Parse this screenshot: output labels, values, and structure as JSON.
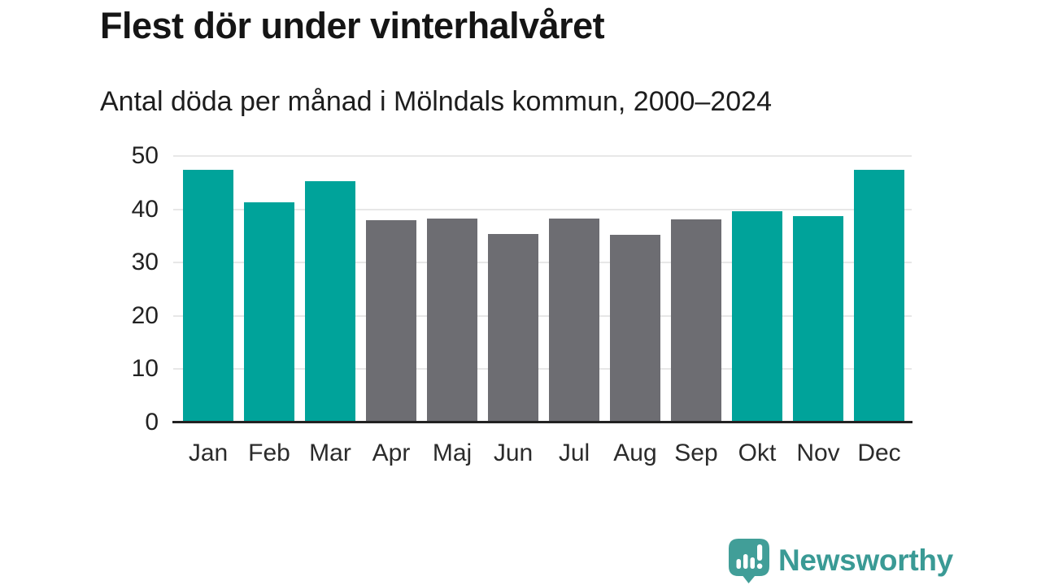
{
  "header": {
    "title": "Flest dör under vinterhalvåret",
    "subtitle": "Antal döda per månad i Mölndals kommun, 2000–2024"
  },
  "chart_data": {
    "type": "bar",
    "title": "Flest dör under vinterhalvåret",
    "subtitle": "Antal döda per månad i Mölndals kommun, 2000–2024",
    "categories": [
      "Jan",
      "Feb",
      "Mar",
      "Apr",
      "Maj",
      "Jun",
      "Jul",
      "Aug",
      "Sep",
      "Okt",
      "Nov",
      "Dec"
    ],
    "values": [
      47.4,
      41.3,
      45.2,
      37.9,
      38.3,
      35.3,
      38.2,
      35.2,
      38.1,
      39.6,
      38.7,
      47.4
    ],
    "bar_color_keys": [
      "winter",
      "winter",
      "winter",
      "summer",
      "summer",
      "summer",
      "summer",
      "summer",
      "summer",
      "winter",
      "winter",
      "winter"
    ],
    "xlabel": "",
    "ylabel": "",
    "ylim": [
      0,
      50
    ],
    "yticks": [
      0,
      10,
      20,
      30,
      40,
      50
    ],
    "grid": "horizontal-only",
    "legend": "none",
    "colors": {
      "winter": "#00a39a",
      "summer": "#6d6d72",
      "gridline": "#e7e7e7",
      "axis_line": "#222222",
      "tick_text": "#222222"
    }
  },
  "footer": {
    "logo_text": "Newsworthy",
    "logo_color": "#3a9a95",
    "logo_icon": "newsworthy-speech-bubble-chart-icon",
    "logo_icon_color": "#419e98"
  }
}
